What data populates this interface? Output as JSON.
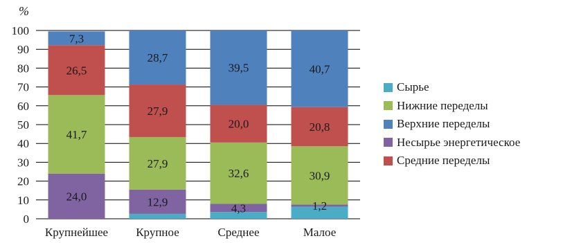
{
  "chart_data": {
    "type": "bar",
    "stacked": true,
    "ylabel": "%",
    "ylim": [
      0,
      100
    ],
    "yticks": [
      0,
      10,
      20,
      30,
      40,
      50,
      60,
      70,
      80,
      90,
      100
    ],
    "categories": [
      "Крупнейшее",
      "Крупное",
      "Среднее",
      "Малое"
    ],
    "series": [
      {
        "name": "Сырье",
        "color": "#4bacc6",
        "values": [
          0.0,
          2.6,
          3.6,
          6.4
        ],
        "labels": [
          "",
          "",
          "",
          ""
        ]
      },
      {
        "name": "Несырье энергетическое",
        "color": "#8064a2",
        "values": [
          24.0,
          12.9,
          4.3,
          1.2
        ],
        "labels": [
          "24,0",
          "12,9",
          "4,3",
          "1,2"
        ]
      },
      {
        "name": "Нижние переделы",
        "color": "#9bbb59",
        "values": [
          41.7,
          27.9,
          32.6,
          30.9
        ],
        "labels": [
          "41,7",
          "27,9",
          "32,6",
          "30,9"
        ]
      },
      {
        "name": "Средние переделы",
        "color": "#c0504d",
        "values": [
          26.5,
          27.9,
          20.0,
          20.8
        ],
        "labels": [
          "26,5",
          "27,9",
          "20,0",
          "20,8"
        ]
      },
      {
        "name": "Верхние переделы",
        "color": "#4f81bd",
        "values": [
          7.3,
          28.7,
          39.5,
          40.7
        ],
        "labels": [
          "7,3",
          "28,7",
          "39,5",
          "40,7"
        ]
      }
    ],
    "legend_order": [
      0,
      2,
      4,
      1,
      3
    ],
    "legend_position": "right",
    "grid": true
  }
}
